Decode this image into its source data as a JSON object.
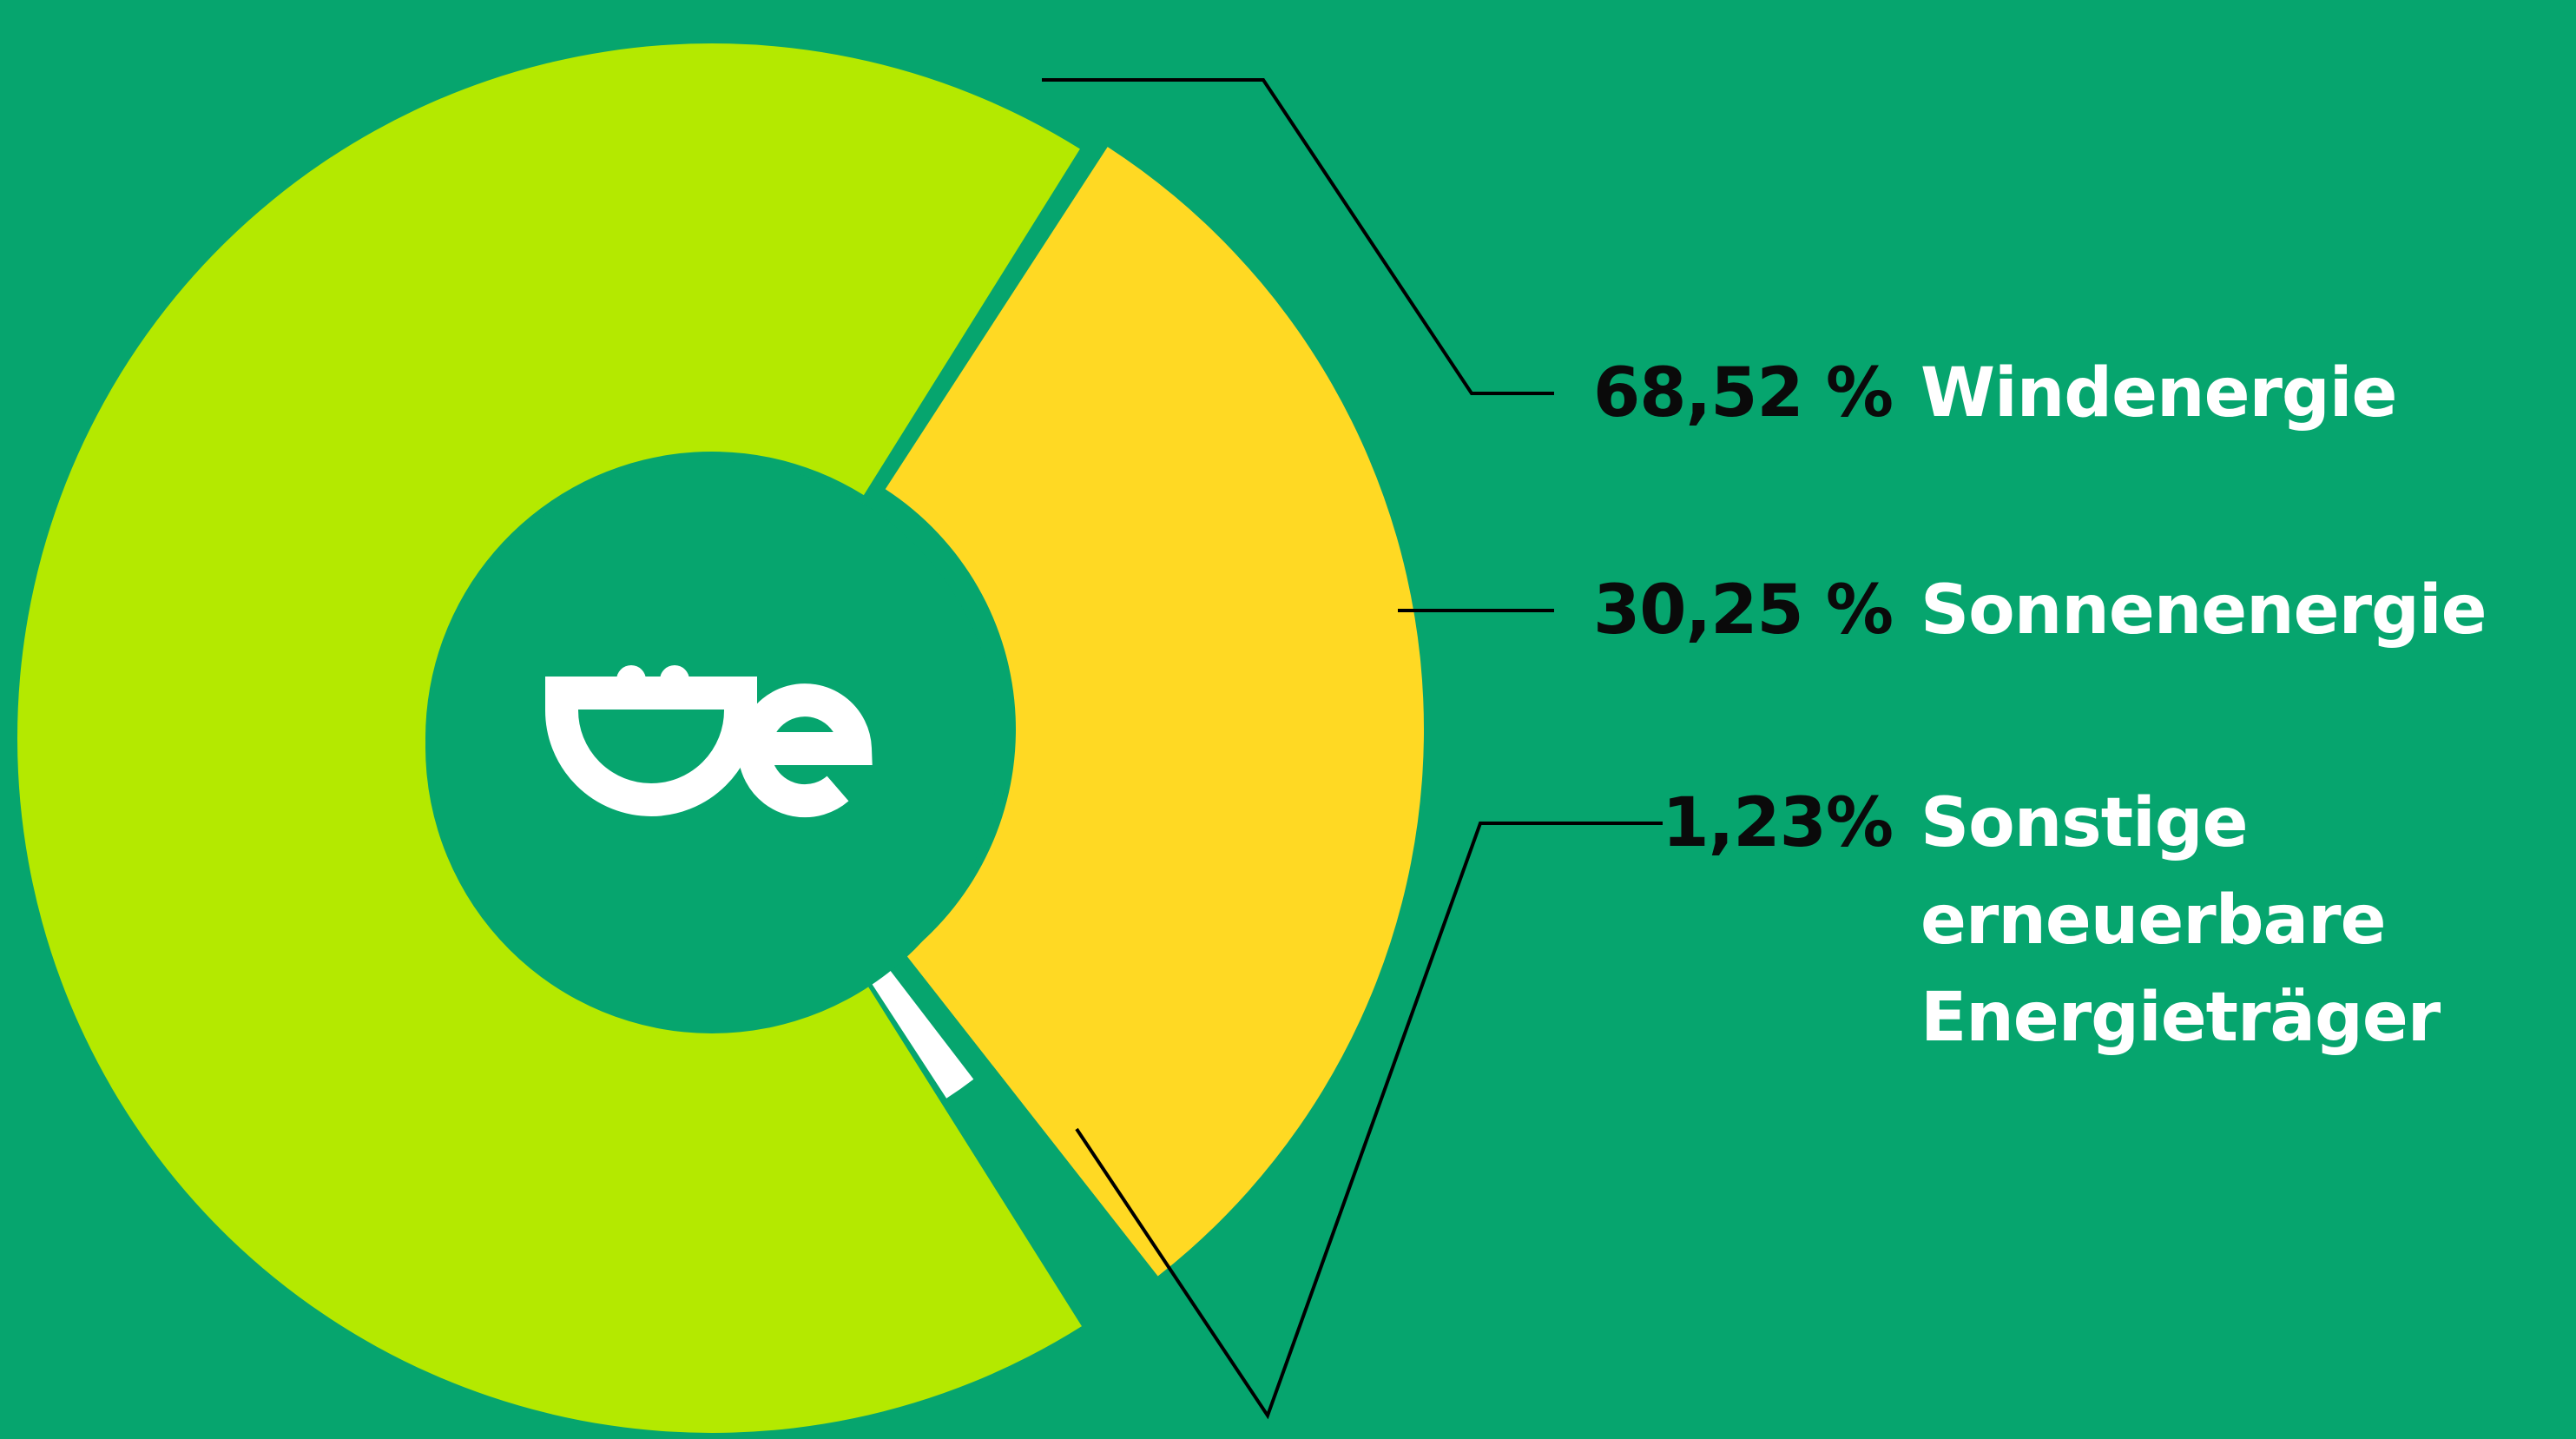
{
  "colors": {
    "background": "#06A56E",
    "wind": "#B4E900",
    "solar": "#FFD923",
    "other": "#FFFFFF",
    "logo": "#FFFFFF",
    "leader_line": "#000000"
  },
  "logo": {
    "icon": "oe-plug-logo-icon"
  },
  "chart_data": {
    "type": "pie",
    "donut": true,
    "exploded": true,
    "series": [
      {
        "name": "Windenergie",
        "value": 68.52,
        "value_label": "68,52 %",
        "color": "#B4E900",
        "label_lines": [
          "Windenergie"
        ]
      },
      {
        "name": "Sonnenenergie",
        "value": 30.25,
        "value_label": "30,25 %",
        "color": "#FFD923",
        "label_lines": [
          "Sonnenenergie"
        ]
      },
      {
        "name": "Sonstige erneuerbare Energieträger",
        "value": 1.23,
        "value_label": "1,23%",
        "color": "#FFFFFF",
        "label_lines": [
          "Sonstige",
          "erneuerbare",
          "Energieträger"
        ]
      }
    ]
  }
}
